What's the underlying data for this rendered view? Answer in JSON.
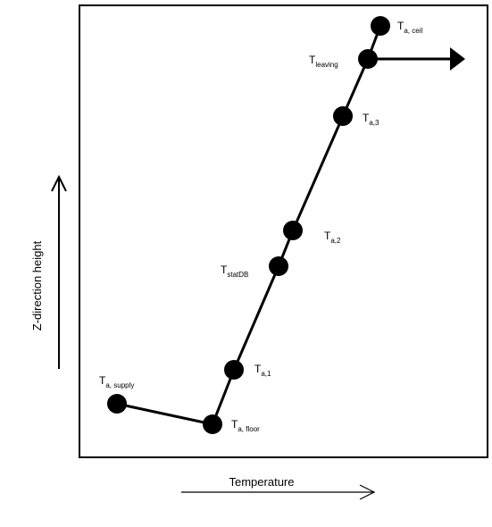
{
  "axes": {
    "x_title": "Temperature",
    "y_title": "Z-direction height"
  },
  "points": [
    {
      "id": "supply",
      "main": "T",
      "sub": "a, supply"
    },
    {
      "id": "floor",
      "main": "T",
      "sub": "a, floor"
    },
    {
      "id": "a1",
      "main": "T",
      "sub": "a,1"
    },
    {
      "id": "statdb",
      "main": "T",
      "sub": "statDB"
    },
    {
      "id": "a2",
      "main": "T",
      "sub": "a,2"
    },
    {
      "id": "a3",
      "main": "T",
      "sub": "a,3"
    },
    {
      "id": "leaving",
      "main": "T",
      "sub": "leaving"
    },
    {
      "id": "ceil",
      "main": "T",
      "sub": "a, ceil"
    }
  ],
  "colors": {
    "line": "#000000",
    "marker": "#000000",
    "background": "#ffffff"
  }
}
